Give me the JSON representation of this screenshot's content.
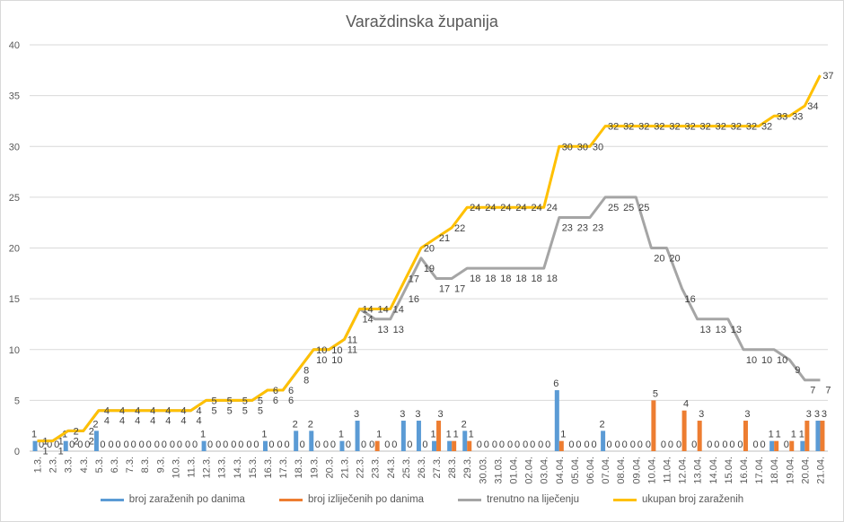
{
  "chart_data": {
    "type": "bar+line",
    "title": "Varaždinska županija",
    "xlabel": "",
    "ylabel": "",
    "ylim": [
      0,
      40
    ],
    "yticks": [
      0,
      5,
      10,
      15,
      20,
      25,
      30,
      35,
      40
    ],
    "grid": true,
    "legend_position": "bottom",
    "categories": [
      "1.3.",
      "2.3.",
      "3.3.",
      "4.3.",
      "5.3.",
      "6.3.",
      "7.3.",
      "8.3.",
      "9.3.",
      "10.3.",
      "11.3.",
      "12.3.",
      "13.3.",
      "14.3.",
      "15.3.",
      "16.3.",
      "17.3.",
      "18.3.",
      "19.3.",
      "20.3.",
      "21.3.",
      "22.3.",
      "23.3.",
      "24.3.",
      "25.3.",
      "26.3.",
      "27.3.",
      "28.3.",
      "29.3.",
      "30.03.",
      "31.03.",
      "01.04.",
      "02.04.",
      "03.04.",
      "04.04.",
      "05.04.",
      "06.04.",
      "07.04.",
      "08.04.",
      "09.04.",
      "10.04.",
      "11.04.",
      "12.04.",
      "13.04.",
      "14.04.",
      "15.04.",
      "16.04.",
      "17.04.",
      "18.04.",
      "19.04.",
      "20.04.",
      "21.04."
    ],
    "series": [
      {
        "name": "broj zaraženih po danima",
        "type": "bar",
        "color": "#5b9bd5",
        "values": [
          1,
          0,
          1,
          0,
          2,
          0,
          0,
          0,
          0,
          0,
          0,
          1,
          0,
          0,
          0,
          1,
          0,
          2,
          2,
          0,
          1,
          3,
          0,
          0,
          3,
          3,
          1,
          1,
          2,
          0,
          0,
          0,
          0,
          0,
          6,
          0,
          0,
          2,
          0,
          0,
          0,
          0,
          0,
          0,
          0,
          0,
          0,
          0,
          1,
          0,
          1,
          3
        ]
      },
      {
        "name": "broj izliječenih po danima",
        "type": "bar",
        "color": "#ed7d31",
        "values": [
          0,
          0,
          0,
          0,
          0,
          0,
          0,
          0,
          0,
          0,
          0,
          0,
          0,
          0,
          0,
          0,
          0,
          0,
          0,
          0,
          0,
          0,
          1,
          0,
          0,
          0,
          3,
          1,
          1,
          0,
          0,
          0,
          0,
          0,
          1,
          0,
          0,
          0,
          0,
          0,
          5,
          0,
          4,
          3,
          0,
          0,
          3,
          0,
          1,
          1,
          3,
          3
        ]
      },
      {
        "name": "trenutno na liječenju",
        "type": "line",
        "color": "#a5a5a5",
        "values": [
          1,
          1,
          2,
          2,
          4,
          4,
          4,
          4,
          4,
          4,
          4,
          5,
          5,
          5,
          5,
          6,
          6,
          8,
          10,
          10,
          11,
          14,
          13,
          13,
          16,
          19,
          17,
          17,
          18,
          18,
          18,
          18,
          18,
          18,
          23,
          23,
          23,
          25,
          25,
          25,
          20,
          20,
          16,
          13,
          13,
          13,
          10,
          10,
          10,
          9,
          7,
          7
        ]
      },
      {
        "name": "ukupan broj zaraženih",
        "type": "line",
        "color": "#ffc000",
        "values": [
          1,
          1,
          2,
          2,
          4,
          4,
          4,
          4,
          4,
          4,
          4,
          5,
          5,
          5,
          5,
          6,
          6,
          8,
          10,
          10,
          11,
          14,
          14,
          14,
          17,
          20,
          21,
          22,
          24,
          24,
          24,
          24,
          24,
          24,
          30,
          30,
          30,
          32,
          32,
          32,
          32,
          32,
          32,
          32,
          32,
          32,
          32,
          32,
          33,
          33,
          34,
          37
        ]
      }
    ]
  }
}
